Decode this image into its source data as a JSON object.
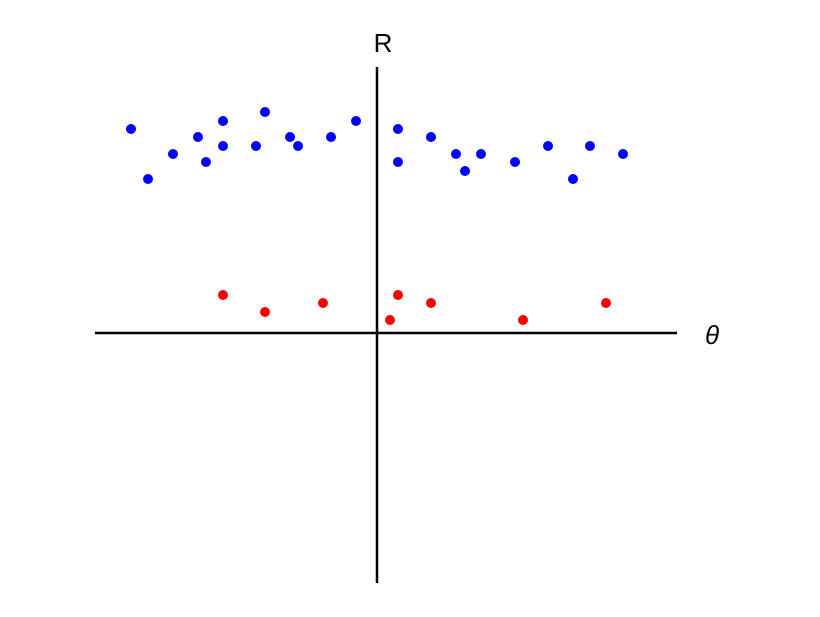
{
  "chart_data": {
    "type": "scatter",
    "x_label": "θ",
    "y_label": "R",
    "xlim": [
      -28.2,
      30
    ],
    "ylim": [
      -25,
      26.6
    ],
    "series": [
      {
        "color": "#0000ff",
        "x": [
          -24.6,
          -22.9,
          -20.4,
          -17.9,
          -17.1,
          -15.4,
          -15.4,
          -12.1,
          -11.2,
          -8.7,
          -7.9,
          -4.6,
          -2.1,
          2.1,
          2.1,
          5.4,
          7.9,
          8.8,
          10.4,
          13.8,
          17.1,
          19.6,
          21.3,
          24.6
        ],
        "values": [
          20.4,
          15.4,
          17.9,
          19.6,
          17.1,
          21.2,
          18.7,
          18.7,
          22.1,
          19.6,
          18.7,
          19.6,
          21.2,
          20.4,
          17.1,
          19.6,
          17.9,
          16.2,
          17.9,
          17.1,
          18.7,
          15.4,
          18.7,
          17.9
        ]
      },
      {
        "color": "#ff0000",
        "x": [
          -15.4,
          -11.2,
          -5.4,
          2.1,
          1.3,
          5.4,
          14.6,
          22.9
        ],
        "values": [
          3.8,
          2.1,
          3.0,
          3.8,
          1.3,
          3.0,
          1.3,
          3.0
        ]
      }
    ]
  }
}
